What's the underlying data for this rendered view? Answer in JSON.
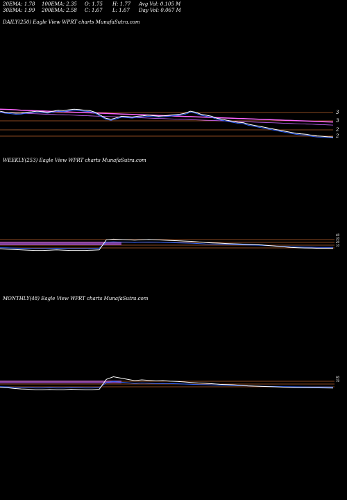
{
  "stats": {
    "row1": [
      {
        "text": "20EMA: 1.78"
      },
      {
        "text": "100EMA: 2.35"
      },
      {
        "text": "O: 1.75"
      },
      {
        "text": "H: 1.77"
      },
      {
        "text": "Avg Vol: 0.105 M"
      }
    ],
    "row2": [
      {
        "text": "30EMA: 1.99"
      },
      {
        "text": "200EMA: 2.58"
      },
      {
        "text": "C: 1.67"
      },
      {
        "text": "L: 1.67"
      },
      {
        "text": "Day Vol: 0.067 M"
      }
    ]
  },
  "panels": {
    "daily": {
      "label": "DAILY(250) Eagle   View  WPRT charts MunafaSutra.com"
    },
    "weekly": {
      "label": "WEEKLY(253) Eagle   View  WPRT charts MunafaSutra.com"
    },
    "monthly": {
      "label": "MONTHLY(48) Eagle   View  WPRT charts MunafaSutra.com"
    }
  },
  "colors": {
    "background": "#000000",
    "price": "#ffffff",
    "ema_fast": "#3366ff",
    "ema_mid": "#ff66ff",
    "ema_slow": "#cc66ff",
    "level_line": "#b8622c"
  },
  "chart_data": [
    {
      "type": "line",
      "name": "daily",
      "y_ticks": [
        "3",
        "3",
        "2",
        "2"
      ],
      "price_series": [
        2.95,
        2.9,
        2.88,
        2.85,
        2.86,
        2.9,
        2.92,
        2.95,
        2.93,
        2.9,
        2.95,
        3.0,
        2.98,
        3.02,
        3.05,
        3.03,
        3.0,
        2.98,
        2.9,
        2.75,
        2.6,
        2.55,
        2.62,
        2.7,
        2.68,
        2.66,
        2.7,
        2.72,
        2.75,
        2.73,
        2.7,
        2.72,
        2.75,
        2.78,
        2.8,
        2.85,
        2.95,
        2.9,
        2.8,
        2.75,
        2.7,
        2.6,
        2.55,
        2.5,
        2.45,
        2.4,
        2.38,
        2.3,
        2.25,
        2.2,
        2.15,
        2.1,
        2.05,
        2.0,
        1.95,
        1.9,
        1.85,
        1.82,
        1.8,
        1.75,
        1.72,
        1.7,
        1.68,
        1.67
      ],
      "ema_series": [
        3.05,
        3.04,
        3.03,
        3.02,
        3.0,
        2.99,
        2.98,
        2.97,
        2.96,
        2.95,
        2.94,
        2.93,
        2.92,
        2.91,
        2.9,
        2.89,
        2.88,
        2.87,
        2.86,
        2.85,
        2.84,
        2.83,
        2.82,
        2.81,
        2.8,
        2.79,
        2.78,
        2.77,
        2.76,
        2.75,
        2.74,
        2.73,
        2.72,
        2.71,
        2.7,
        2.69,
        2.68,
        2.67,
        2.66,
        2.65,
        2.64,
        2.63,
        2.62,
        2.61,
        2.6,
        2.59,
        2.58,
        2.57,
        2.56,
        2.55,
        2.54,
        2.53,
        2.52,
        2.51,
        2.5,
        2.49,
        2.48,
        2.47,
        2.46,
        2.45,
        2.44,
        2.43,
        2.42,
        2.41
      ]
    },
    {
      "type": "line",
      "name": "weekly",
      "y_ticks": [
        "40",
        "30",
        "20",
        "10"
      ],
      "price_series": [
        1.5,
        1.4,
        1.3,
        1.2,
        1.1,
        1.0,
        1.0,
        1.1,
        1.2,
        1.1,
        1.0,
        1.0,
        1.0,
        1.1,
        1.2,
        4.5,
        4.7,
        4.6,
        4.5,
        4.4,
        4.5,
        4.6,
        4.5,
        4.4,
        4.3,
        4.2,
        4.1,
        4.0,
        3.8,
        3.6,
        3.5,
        3.4,
        3.3,
        3.2,
        3.1,
        3.0,
        2.9,
        2.8,
        2.6,
        2.4,
        2.2,
        2.0,
        1.9,
        1.8,
        1.75,
        1.7,
        1.68,
        1.67
      ]
    },
    {
      "type": "line",
      "name": "monthly",
      "y_ticks": [
        "90",
        "70"
      ],
      "price_series": [
        2.0,
        1.8,
        1.5,
        1.3,
        1.2,
        1.0,
        1.0,
        1.1,
        1.0,
        1.0,
        1.2,
        1.1,
        1.0,
        1.0,
        1.2,
        5.0,
        6.0,
        5.5,
        5.0,
        4.5,
        4.8,
        4.6,
        4.4,
        4.5,
        4.3,
        4.2,
        4.0,
        3.8,
        3.6,
        3.5,
        3.3,
        3.1,
        3.0,
        2.9,
        2.7,
        2.5,
        2.4,
        2.3,
        2.2,
        2.1,
        2.0,
        1.9,
        1.85,
        1.8,
        1.75,
        1.72,
        1.7,
        1.67
      ]
    }
  ]
}
